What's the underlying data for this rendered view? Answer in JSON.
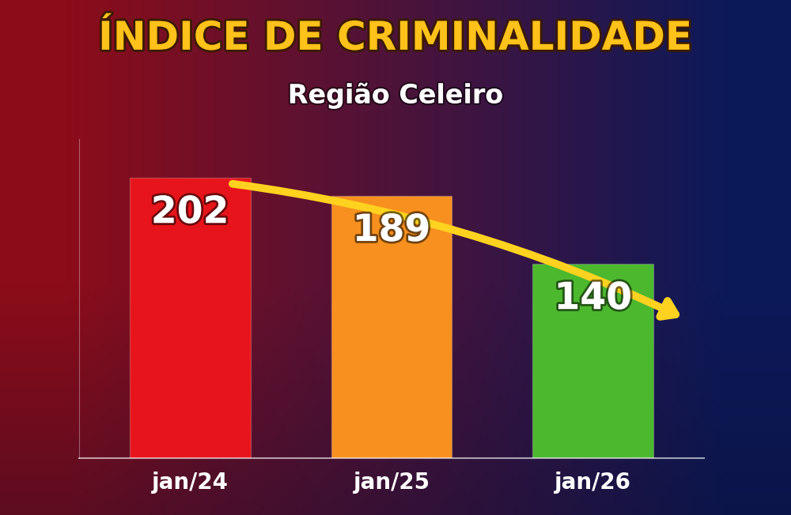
{
  "chart_data": {
    "type": "bar",
    "title": "ÍNDICE DE CRIMINALIDADE",
    "subtitle": "Região Celeiro",
    "categories": [
      "jan/24",
      "jan/25",
      "jan/26"
    ],
    "values": [
      202,
      189,
      140
    ],
    "colors": [
      "#e8141b",
      "#f7901e",
      "#4cb82e"
    ],
    "ylim": [
      0,
      230
    ],
    "yticks": [],
    "data_labels": true,
    "tick_labels": "x"
  }
}
